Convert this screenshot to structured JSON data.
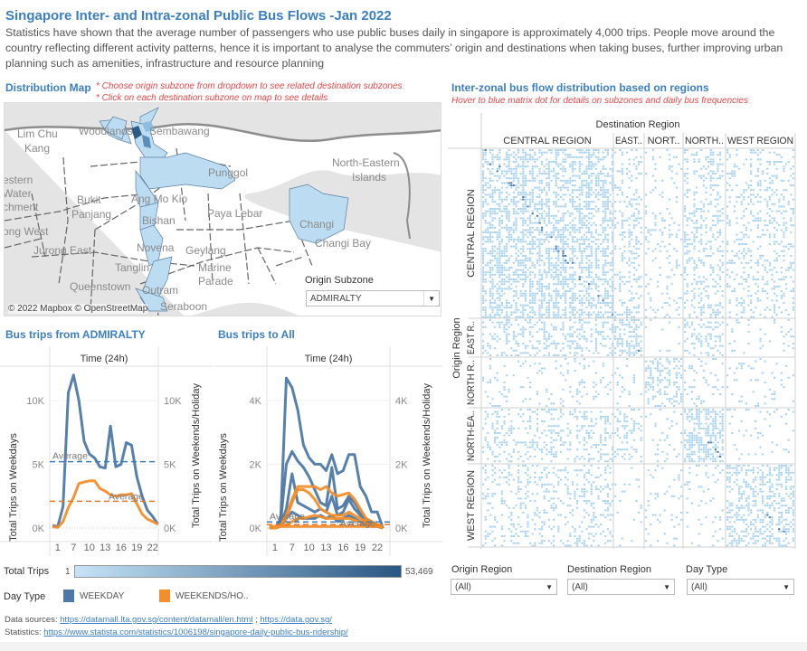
{
  "header": {
    "title": "Singapore  Inter- and Intra-zonal Public Bus Flows -Jan 2022",
    "description": "Statistics have shown that the average number of passengers who use public buses daily in singapore is approximately 4,000 trips. People move around the country reflecting different activity patterns, hence it is important to analyse the commuters’ origin and destinations when taking buses, further improving urban planning such as amenities, infrastructure and resource planning"
  },
  "map": {
    "heading": "Distribution Map",
    "note1": "* Choose origin subzone from dropdown to see related destination subzones",
    "note2": "* Click on each destination subzone on map to see details",
    "labels": [
      "Lim Chu",
      "Kang",
      "Woodlands",
      "Sembawang",
      "North-Eastern",
      "Islands",
      "estern",
      "Water",
      "chment",
      "Bukit",
      "Panjang",
      "Ang Mo Kio",
      "Punggol",
      "Paya Lebar",
      "Changi",
      "Changi Bay",
      "Bishan",
      "ong West",
      "Jurong East",
      "Novena",
      "Geylang",
      "Tanglin",
      "Marine",
      "Parade",
      "Queenstown",
      "Outram",
      "Seraboon"
    ],
    "attribution": "© 2022 Mapbox © OpenStreetMap",
    "origin_subzone_label": "Origin Subzone",
    "origin_subzone_value": "ADMIRALTY"
  },
  "matrix": {
    "heading": "Inter-zonal bus flow distribution based on regions",
    "note": "Hover to blue matrix dot for details on subzones and daily bus frequencies",
    "col_title": "Destination Region",
    "row_title": "Origin Region",
    "columns": [
      "CENTRAL REGION",
      "EAST..",
      "NORT..",
      "NORTH..",
      "WEST REGION"
    ],
    "rows": [
      "CENTRAL REGION",
      "EAST R..",
      "NORTH R..",
      "NORTH-EA..",
      "WEST REGION"
    ],
    "dot_color": "#a9d3ee"
  },
  "legend": {
    "total_trips_label": "Total Trips",
    "min": "1",
    "max": "53,469",
    "gradient": [
      "#c6e3f6",
      "#2a5783"
    ],
    "day_type_label": "Day Type",
    "weekday": "WEEKDAY",
    "weekend": "WEEKENDS/HO..",
    "weekday_color": "#4e79a7",
    "weekend_color": "#f28e2b"
  },
  "filters": [
    {
      "label": "Origin Region",
      "value": "(All)"
    },
    {
      "label": "Destination Region",
      "value": "(All)"
    },
    {
      "label": "Day Type",
      "value": "(All)"
    }
  ],
  "sources": {
    "label": "Data sources:",
    "link1": "https://datamall.lta.gov.sg/content/datamall/en.html",
    "sep": ";",
    "link2": "https://data.gov.sg/",
    "stats_label": "Statistics:",
    "link3": "https://www.statista.com/statistics/1006198/singapore-daily-public-bus-ridership/"
  },
  "chart_data": [
    {
      "type": "line",
      "title": "Bus trips from ADMIRALTY",
      "xlabel": "Time (24h)",
      "ylabel": "Total Trips on Weekdays",
      "y2label": "Total Trips on Weekends/Holiday",
      "categories": [
        0,
        1,
        5,
        6,
        7,
        8,
        9,
        10,
        11,
        12,
        13,
        14,
        15,
        16,
        17,
        18,
        19,
        20,
        21,
        22,
        23
      ],
      "x_tick_labels": [
        "1",
        "7",
        "10",
        "13",
        "16",
        "19",
        "22"
      ],
      "y_tick_labels": [
        "0K",
        "5K",
        "10K"
      ],
      "ylim": [
        0,
        13000
      ],
      "units": "K",
      "series": [
        {
          "day_type": "WEEKDAY",
          "values": [
            0.2,
            0.1,
            1.7,
            10.6,
            12,
            10,
            6.8,
            5.8,
            5.5,
            4.8,
            4.7,
            8,
            4.8,
            5,
            6.7,
            6.5,
            4,
            2.5,
            1.4,
            0.9,
            0.3
          ]
        },
        {
          "day_type": "WEEKENDS/HOLIDAY",
          "values": [
            0.1,
            0.05,
            0.5,
            1.6,
            2.4,
            3.5,
            3.6,
            3.7,
            3.7,
            3.1,
            2.9,
            2.6,
            2.5,
            2.6,
            2.6,
            2.7,
            1.9,
            1.1,
            0.7,
            0.5,
            0.3
          ]
        }
      ],
      "reference_lines": [
        {
          "label": "Average",
          "day_type": "WEEKDAY",
          "value": 5.2
        },
        {
          "label": "Average",
          "day_type": "WEEKENDS/HOLIDAY",
          "value": 2.1
        }
      ]
    },
    {
      "type": "line",
      "title": "Bus trips to All",
      "xlabel": "Time (24h)",
      "ylabel": "Total Trips on Weekdays",
      "y2label": "Total Trips on Weekends/Holiday",
      "categories": [
        0,
        1,
        5,
        6,
        7,
        8,
        9,
        10,
        11,
        12,
        13,
        14,
        15,
        16,
        17,
        18,
        19,
        20,
        21,
        22,
        23
      ],
      "x_tick_labels": [
        "1",
        "7",
        "10",
        "13",
        "16",
        "19",
        "22"
      ],
      "y_tick_labels": [
        "0K",
        "2K",
        "4K"
      ],
      "ylim": [
        0,
        5000
      ],
      "units": "K",
      "series": [
        {
          "day_type": "WEEKDAY",
          "values": [
            0,
            0,
            0.3,
            4.7,
            4.4,
            3.7,
            2.6,
            2.2,
            2.0,
            2.0,
            1.8,
            2.3,
            1.7,
            1.8,
            2.3,
            2.3,
            1.3,
            1.0,
            0.5,
            0.5,
            0
          ]
        },
        {
          "day_type": "WEEKDAY",
          "values": [
            0,
            0,
            0.2,
            2.0,
            2.4,
            2.1,
            1.9,
            1.6,
            1.2,
            0.8,
            0.7,
            1.9,
            0.6,
            0.7,
            1.0,
            0.8,
            0.5,
            0.3,
            0.2,
            0.1,
            0
          ]
        },
        {
          "day_type": "WEEKDAY",
          "values": [
            0,
            0,
            0.1,
            0.6,
            1.7,
            0.8,
            0.7,
            0.6,
            0.5,
            0.6,
            0.5,
            1.0,
            0.4,
            0.5,
            0.9,
            0.6,
            0.4,
            0.2,
            0.1,
            0.1,
            0
          ]
        },
        {
          "day_type": "WEEKDAY",
          "values": [
            0,
            0,
            0.05,
            0.3,
            0.5,
            0.4,
            0.3,
            0.3,
            0.3,
            0.4,
            0.3,
            0.4,
            0.2,
            0.3,
            0.4,
            0.3,
            0.2,
            0.1,
            0.05,
            0.05,
            0
          ]
        },
        {
          "day_type": "WEEKENDS/HOLIDAY",
          "values": [
            0.05,
            0,
            0.1,
            0.4,
            0.9,
            1.3,
            1.3,
            1.3,
            1.3,
            1.2,
            1.3,
            1.1,
            1.0,
            1.05,
            1.1,
            0.9,
            0.6,
            0.3,
            0.2,
            0.1,
            0.05
          ]
        },
        {
          "day_type": "WEEKENDS/HOLIDAY",
          "values": [
            0.05,
            0,
            0.1,
            0.3,
            0.8,
            1.2,
            1.2,
            1.1,
            0.9,
            0.6,
            0.5,
            0.4,
            0.4,
            0.4,
            0.5,
            0.4,
            0.3,
            0.2,
            0.1,
            0.1,
            0.05
          ]
        },
        {
          "day_type": "WEEKENDS/HOLIDAY",
          "values": [
            0,
            0,
            0.05,
            0.1,
            0.2,
            0.3,
            0.3,
            0.35,
            0.4,
            0.35,
            0.3,
            0.3,
            0.3,
            0.3,
            0.3,
            0.25,
            0.2,
            0.15,
            0.1,
            0.05,
            0
          ]
        },
        {
          "day_type": "WEEKENDS/HOLIDAY",
          "values": [
            0.05,
            0.05,
            0.05,
            0.05,
            0.05,
            0.05,
            0.05,
            0.05,
            0.05,
            0.05,
            0.05,
            0.05,
            0.05,
            0.05,
            0.05,
            0.05,
            0.05,
            0.05,
            0.05,
            0.05,
            0.05
          ]
        }
      ],
      "reference_lines": [
        {
          "label": "Average",
          "day_type": "WEEKDAY",
          "value": 0.19
        },
        {
          "label": "Average",
          "day_type": "WEEKENDS/HOLIDAY",
          "value": 0.11
        }
      ]
    }
  ]
}
